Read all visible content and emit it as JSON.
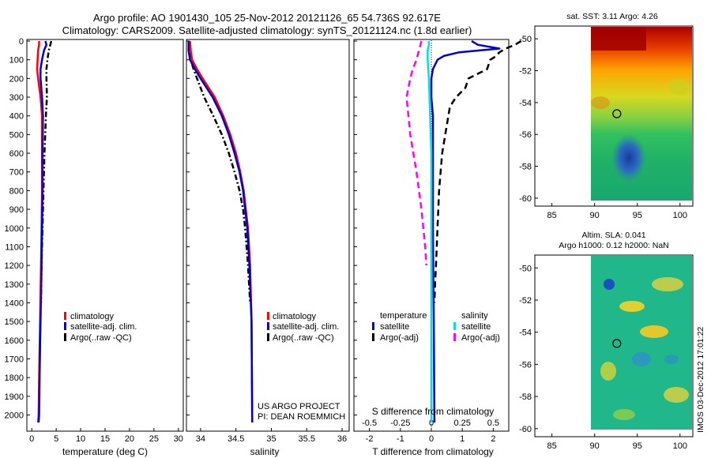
{
  "title_line1": "Argo profile: AO 1901430_105 25-Nov-2012 20121126_65 54.736S 92.617E",
  "title_line2": "Climatology: CARS2009. Satellite-adjusted climatology: synTS_20121124.nc (1.8d earlier)",
  "watermark": "IMOS 03-Dec-2012 17:01:22",
  "colors": {
    "climatology": "#ff0000",
    "satellite": "#0000cc",
    "argo": "#000000",
    "salinity_satellite": "#00e0e0",
    "salinity_argo": "#ff00ff"
  },
  "chart_data": [
    {
      "type": "line",
      "name": "temperature-panel",
      "xlabel": "temperature (deg C)",
      "xlim": [
        -1,
        31
      ],
      "ylim": [
        2050,
        0
      ],
      "xticks": [
        "0",
        "5",
        "10",
        "15",
        "20",
        "25",
        "30"
      ],
      "yticks": [
        "0",
        "100",
        "200",
        "300",
        "400",
        "500",
        "600",
        "700",
        "800",
        "900",
        "1000",
        "1100",
        "1200",
        "1300",
        "1400",
        "1500",
        "1600",
        "1700",
        "1800",
        "1900",
        "2000"
      ],
      "legend": [
        "climatology",
        "satellite-adj. clim.",
        "Argo(..raw -QC)"
      ],
      "series": [
        {
          "name": "climatology",
          "depth": [
            0,
            20,
            50,
            100,
            150,
            200,
            300,
            400,
            600,
            800,
            1000,
            1200,
            1500,
            1800,
            2000,
            2040
          ],
          "values": [
            1.5,
            1.5,
            1.3,
            1.2,
            1.1,
            1.3,
            1.8,
            2.1,
            2.1,
            2.1,
            2.0,
            1.9,
            1.7,
            1.5,
            1.4,
            1.3
          ]
        },
        {
          "name": "satellite-adj. clim.",
          "depth": [
            0,
            20,
            50,
            100,
            150,
            200,
            300,
            400,
            600,
            800,
            1000,
            1200,
            1500,
            1800,
            2000,
            2040
          ],
          "values": [
            2.8,
            3.0,
            2.5,
            2.1,
            1.8,
            1.8,
            2.1,
            2.3,
            2.2,
            2.2,
            2.1,
            2.0,
            1.8,
            1.6,
            1.5,
            1.4
          ]
        },
        {
          "name": "Argo(..raw -QC)",
          "depth": [
            0,
            20,
            50,
            100,
            150,
            200,
            300,
            400,
            600,
            800,
            1000,
            1200,
            1400
          ],
          "values": [
            4.0,
            3.8,
            3.5,
            3.2,
            3.0,
            3.0,
            3.1,
            2.9,
            2.6,
            2.4,
            2.2,
            2.0,
            1.9
          ]
        }
      ]
    },
    {
      "type": "line",
      "name": "salinity-panel",
      "xlabel": "salinity",
      "xlim": [
        33.8,
        36.1
      ],
      "ylim": [
        2050,
        0
      ],
      "xticks": [
        "34",
        "34.5",
        "35",
        "35.5",
        "36"
      ],
      "legend": [
        "climatology",
        "satellite-adj. clim.",
        "Argo(..raw -QC)"
      ],
      "annotation": [
        "US ARGO PROJECT",
        "PI: DEAN ROEMMICH"
      ],
      "series": [
        {
          "name": "climatology",
          "depth": [
            0,
            50,
            100,
            150,
            200,
            300,
            400,
            500,
            600,
            700,
            800,
            900,
            1000,
            1200,
            1500,
            2040
          ],
          "values": [
            33.85,
            33.86,
            33.88,
            33.95,
            34.03,
            34.2,
            34.32,
            34.42,
            34.5,
            34.56,
            34.61,
            34.64,
            34.67,
            34.7,
            34.72,
            34.73
          ]
        },
        {
          "name": "satellite-adj. clim.",
          "depth": [
            0,
            50,
            100,
            150,
            200,
            300,
            400,
            500,
            600,
            700,
            800,
            900,
            1000,
            1200,
            1500,
            2040
          ],
          "values": [
            33.83,
            33.83,
            33.85,
            33.92,
            34.0,
            34.17,
            34.3,
            34.4,
            34.48,
            34.55,
            34.6,
            34.63,
            34.66,
            34.69,
            34.72,
            34.73
          ]
        },
        {
          "name": "Argo(..raw -QC)",
          "depth": [
            0,
            50,
            100,
            150,
            200,
            300,
            400,
            500,
            600,
            700,
            800,
            900,
            1000,
            1200,
            1400
          ],
          "values": [
            33.83,
            33.84,
            33.86,
            33.9,
            33.95,
            34.05,
            34.18,
            34.3,
            34.4,
            34.48,
            34.55,
            34.6,
            34.63,
            34.67,
            34.7
          ]
        }
      ]
    },
    {
      "type": "line",
      "name": "difference-panel",
      "xlabel": "T difference from climatology",
      "xlabel2": "S difference from climatology",
      "xlim": [
        -2.5,
        2.5
      ],
      "s_ticks": [
        "-0.5",
        "-0.25",
        "0",
        "0.25",
        "0.5"
      ],
      "t_ticks": [
        "-2",
        "-1",
        "0",
        "1",
        "2"
      ],
      "ylim": [
        2050,
        0
      ],
      "legend_temperature": [
        "temperature",
        "satellite",
        "Argo(-adj)"
      ],
      "legend_salinity": [
        "salinity",
        "satellite",
        "Argo(-adj)"
      ],
      "series": [
        {
          "name": "T satellite",
          "depth": [
            0,
            20,
            40,
            60,
            80,
            100,
            150,
            200,
            300,
            400,
            600,
            800,
            1000,
            1500,
            2040
          ],
          "values": [
            1.3,
            1.5,
            2.2,
            0.9,
            0.4,
            0.2,
            0.05,
            0.0,
            0.0,
            0.05,
            0.05,
            0.05,
            0.05,
            0.08,
            0.1
          ]
        },
        {
          "name": "T Argo(-adj)",
          "depth": [
            0,
            20,
            40,
            60,
            80,
            100,
            150,
            200,
            250,
            300,
            350,
            400,
            500,
            600,
            800,
            1000,
            1200,
            1300,
            1400
          ],
          "values": [
            2.9,
            2.7,
            2.4,
            2.2,
            2.1,
            1.9,
            1.8,
            1.2,
            1.1,
            0.8,
            0.6,
            0.55,
            0.45,
            0.35,
            0.25,
            0.2,
            0.15,
            0.12,
            0.1
          ]
        },
        {
          "name": "S satellite",
          "depth": [
            0,
            20,
            50,
            100,
            200,
            400,
            600,
            800,
            1000,
            1500,
            2040
          ],
          "values": [
            -0.02,
            -0.02,
            -0.03,
            -0.03,
            -0.02,
            -0.01,
            0.0,
            0.0,
            0.0,
            0.0,
            0.0
          ]
        },
        {
          "name": "S Argo(-adj)",
          "depth": [
            0,
            50,
            100,
            150,
            200,
            300,
            500,
            700,
            900,
            1100,
            1200
          ],
          "values": [
            -0.08,
            -0.1,
            -0.12,
            -0.15,
            -0.17,
            -0.2,
            -0.17,
            -0.12,
            -0.08,
            -0.05,
            -0.04
          ]
        }
      ]
    },
    {
      "type": "heatmap",
      "name": "sst-map",
      "title": "sat. SST: 3.11 Argo: 4.26",
      "xticks": [
        "85",
        "90",
        "95",
        "100"
      ],
      "yticks": [
        "-50",
        "-52",
        "-54",
        "-56",
        "-58",
        "-60"
      ],
      "xlim": [
        83,
        101.5
      ],
      "ylim": [
        -60.5,
        -49.2
      ],
      "marker": [
        92.6,
        -54.7
      ]
    },
    {
      "type": "heatmap",
      "name": "sla-map",
      "title_line1": "Altim. SLA: 0.041",
      "title_line2": "Argo h1000: 0.12 h2000: NaN",
      "xticks": [
        "85",
        "90",
        "95",
        "100"
      ],
      "yticks": [
        "-50",
        "-52",
        "-54",
        "-56",
        "-58",
        "-60"
      ],
      "xlim": [
        83,
        101.5
      ],
      "ylim": [
        -60.5,
        -49.2
      ],
      "marker": [
        92.6,
        -54.7
      ]
    }
  ]
}
